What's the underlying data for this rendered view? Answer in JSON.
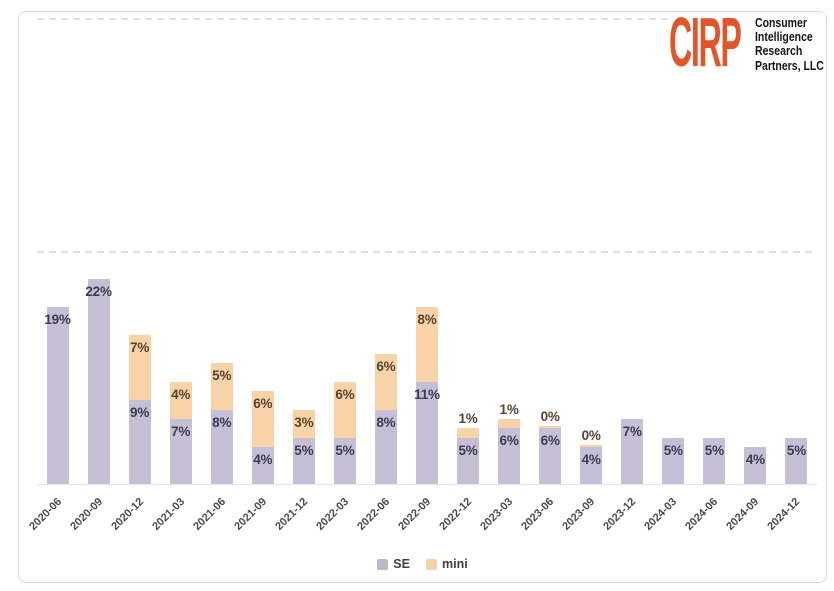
{
  "logo": {
    "abbr": "CIRP",
    "abbr_color": "#e2552a",
    "lines": [
      "Consumer",
      "Intelligence",
      "Research",
      "Partners, LLC"
    ]
  },
  "legend": {
    "items": [
      {
        "label": "SE",
        "color": "#bcb8ca"
      },
      {
        "label": "mini",
        "color": "#f4d3aa"
      }
    ]
  },
  "chart_data": {
    "type": "bar",
    "stacked": true,
    "title": "",
    "xlabel": "",
    "ylabel": "",
    "value_suffix": "%",
    "ylim": [
      0,
      50
    ],
    "gridlines_pct": [
      25,
      50
    ],
    "grid_style": "dashed",
    "legend_position": "bottom",
    "categories": [
      "2020-06",
      "2020-09",
      "2020-12",
      "2021-03",
      "2021-06",
      "2021-09",
      "2021-12",
      "2022-03",
      "2022-06",
      "2022-09",
      "2022-12",
      "2023-03",
      "2023-06",
      "2023-09",
      "2023-12",
      "2024-03",
      "2024-06",
      "2024-09",
      "2024-12"
    ],
    "series": [
      {
        "name": "SE",
        "color": "#c6c0d7",
        "label_color": "#3f3b4f",
        "values": [
          19,
          22,
          9,
          7,
          8,
          4,
          5,
          5,
          8,
          11,
          5,
          6,
          6,
          4,
          7,
          5,
          5,
          4,
          5
        ]
      },
      {
        "name": "mini",
        "color": "#f8d3a7",
        "label_color": "#57432e",
        "values": [
          null,
          null,
          7,
          4,
          5,
          6,
          3,
          6,
          6,
          8,
          1,
          1,
          0,
          0,
          null,
          null,
          null,
          null,
          null
        ]
      }
    ]
  }
}
